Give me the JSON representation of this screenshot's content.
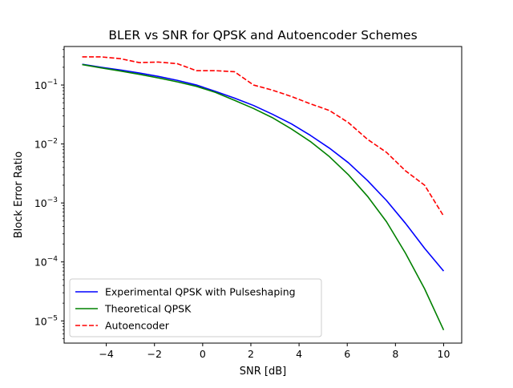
{
  "chart_data": {
    "type": "line",
    "title": "BLER vs SNR for QPSK and Autoencoder Schemes",
    "xlabel": "SNR [dB]",
    "ylabel": "Block Error Ratio",
    "yscale": "log",
    "xlim": [
      -5.75,
      10.75
    ],
    "ylim": [
      4.2e-06,
      0.45
    ],
    "xticks": [
      -4,
      -2,
      0,
      2,
      4,
      6,
      8,
      10
    ],
    "xtick_labels": [
      "−4",
      "−2",
      "0",
      "2",
      "4",
      "6",
      "8",
      "10"
    ],
    "yticks": [
      {
        "value": 1e-05,
        "base": "10",
        "exp": "−5"
      },
      {
        "value": 0.0001,
        "base": "10",
        "exp": "−4"
      },
      {
        "value": 0.001,
        "base": "10",
        "exp": "−3"
      },
      {
        "value": 0.01,
        "base": "10",
        "exp": "−2"
      },
      {
        "value": 0.1,
        "base": "10",
        "exp": "−1"
      }
    ],
    "grid": false,
    "legend_position": "lower-left",
    "series": [
      {
        "name": "Experimental QPSK with Pulseshaping",
        "color": "#0000ff",
        "style": "solid",
        "x": [
          -5,
          -4.21,
          -3.42,
          -2.63,
          -1.84,
          -1.05,
          -0.26,
          0.53,
          1.32,
          2.11,
          2.89,
          3.68,
          4.47,
          5.26,
          6.05,
          6.84,
          7.63,
          8.42,
          9.21,
          10
        ],
        "y": [
          0.225,
          0.2,
          0.18,
          0.16,
          0.14,
          0.12,
          0.1,
          0.078,
          0.06,
          0.045,
          0.032,
          0.022,
          0.014,
          0.0085,
          0.0048,
          0.0024,
          0.0011,
          0.00045,
          0.00017,
          7e-05
        ]
      },
      {
        "name": "Theoretical QPSK",
        "color": "#008000",
        "style": "solid",
        "x": [
          -5,
          -4.21,
          -3.42,
          -2.63,
          -1.84,
          -1.05,
          -0.26,
          0.53,
          1.32,
          2.11,
          2.89,
          3.68,
          4.47,
          5.26,
          6.05,
          6.84,
          7.63,
          8.42,
          9.21,
          10
        ],
        "y": [
          0.222,
          0.195,
          0.173,
          0.152,
          0.132,
          0.113,
          0.095,
          0.075,
          0.055,
          0.04,
          0.028,
          0.018,
          0.011,
          0.0061,
          0.003,
          0.0013,
          0.00048,
          0.00014,
          3.5e-05,
          7e-06
        ]
      },
      {
        "name": "Autoencoder",
        "color": "#ff0000",
        "style": "dashed",
        "x": [
          -5,
          -4.21,
          -3.42,
          -2.63,
          -1.84,
          -1.05,
          -0.26,
          0.53,
          1.32,
          2.11,
          2.89,
          3.68,
          4.47,
          5.26,
          6.05,
          6.84,
          7.63,
          8.42,
          9.21,
          10
        ],
        "y": [
          0.3,
          0.3,
          0.28,
          0.24,
          0.245,
          0.23,
          0.175,
          0.175,
          0.168,
          0.1,
          0.082,
          0.064,
          0.048,
          0.037,
          0.023,
          0.012,
          0.0072,
          0.0035,
          0.002,
          0.0006
        ]
      }
    ]
  }
}
